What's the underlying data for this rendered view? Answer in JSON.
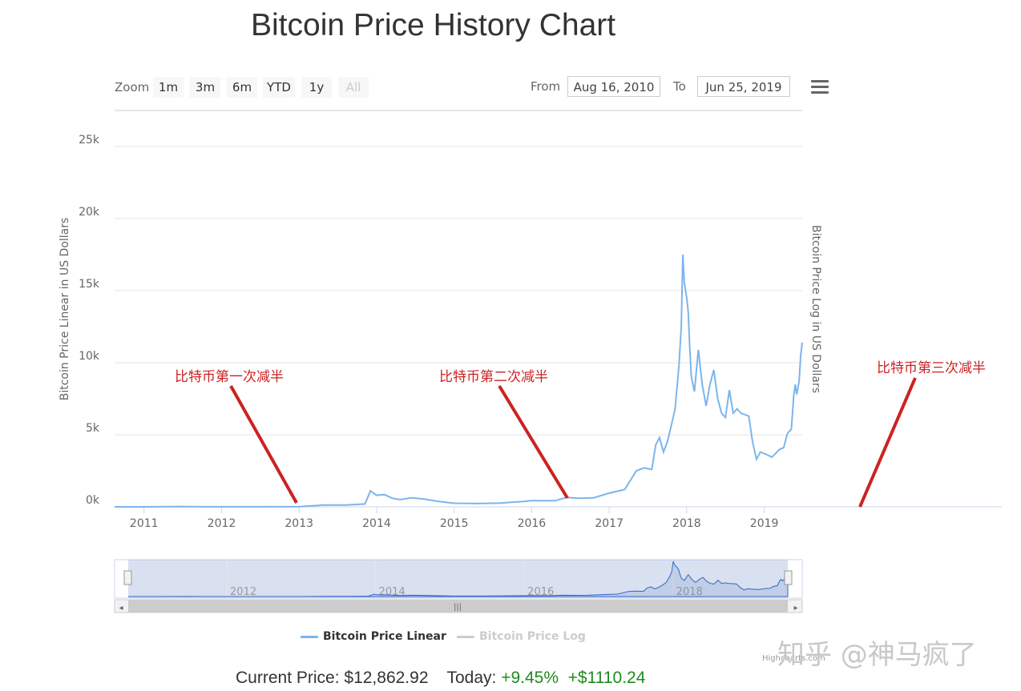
{
  "title": "Bitcoin Price History Chart",
  "toolbar": {
    "zoom_label": "Zoom",
    "zoom_buttons": [
      "1m",
      "3m",
      "6m",
      "YTD",
      "1y",
      "All"
    ],
    "from_label": "From",
    "from_value": "Aug 16, 2010",
    "to_label": "To",
    "to_value": "Jun 25, 2019"
  },
  "chart_data": {
    "type": "line",
    "title": "Bitcoin Price History Chart",
    "ylabel": "Bitcoin Price Linear in US Dollars",
    "y2label": "Bitcoin Price Log in US Dollars",
    "ylim": [
      0,
      27500
    ],
    "yticks": [
      0,
      5000,
      10000,
      15000,
      20000,
      25000
    ],
    "ytick_labels": [
      "0k",
      "5k",
      "10k",
      "15k",
      "20k",
      "25k"
    ],
    "xlim": [
      2010.62,
      2019.49
    ],
    "xticks": [
      2011,
      2012,
      2013,
      2014,
      2015,
      2016,
      2017,
      2018,
      2019
    ],
    "xtick_labels": [
      "2011",
      "2012",
      "2013",
      "2014",
      "2015",
      "2016",
      "2017",
      "2018",
      "2019"
    ],
    "navigator_labels": [
      "2012",
      "2014",
      "2016",
      "2018"
    ],
    "navigator_ticks": [
      2012,
      2014,
      2016,
      2018
    ],
    "series": [
      {
        "name": "Bitcoin Price Linear",
        "color": "#7cb5ec",
        "x": [
          2010.62,
          2011.0,
          2011.45,
          2011.6,
          2012.0,
          2012.5,
          2013.0,
          2013.25,
          2013.3,
          2013.6,
          2013.85,
          2013.92,
          2014.0,
          2014.1,
          2014.2,
          2014.3,
          2014.45,
          2014.6,
          2014.8,
          2015.0,
          2015.3,
          2015.6,
          2015.9,
          2016.0,
          2016.3,
          2016.45,
          2016.6,
          2016.8,
          2017.0,
          2017.2,
          2017.35,
          2017.45,
          2017.55,
          2017.6,
          2017.65,
          2017.7,
          2017.75,
          2017.8,
          2017.85,
          2017.9,
          2017.93,
          2017.95,
          2017.97,
          2018.0,
          2018.02,
          2018.04,
          2018.06,
          2018.1,
          2018.15,
          2018.2,
          2018.25,
          2018.3,
          2018.35,
          2018.4,
          2018.45,
          2018.5,
          2018.55,
          2018.6,
          2018.65,
          2018.7,
          2018.8,
          2018.85,
          2018.9,
          2018.95,
          2019.0,
          2019.1,
          2019.2,
          2019.25,
          2019.3,
          2019.35,
          2019.38,
          2019.4,
          2019.42,
          2019.45,
          2019.47,
          2019.49
        ],
        "values": [
          0,
          1,
          20,
          10,
          5,
          8,
          14,
          100,
          130,
          120,
          200,
          1100,
          800,
          850,
          600,
          500,
          620,
          550,
          380,
          250,
          230,
          260,
          380,
          430,
          420,
          650,
          600,
          630,
          950,
          1200,
          2500,
          2700,
          2600,
          4300,
          4800,
          3800,
          4500,
          5600,
          6800,
          9800,
          12500,
          17500,
          15500,
          14500,
          13500,
          11000,
          9000,
          8000,
          10900,
          8500,
          7000,
          8500,
          9500,
          7500,
          6500,
          6200,
          8100,
          6500,
          6800,
          6500,
          6300,
          4500,
          3300,
          3800,
          3700,
          3450,
          4000,
          4100,
          5100,
          5400,
          7700,
          8500,
          7800,
          8700,
          10500,
          11400
        ]
      },
      {
        "name": "Bitcoin Price Log",
        "color": "#cccccc"
      }
    ]
  },
  "annotations": [
    {
      "label": "比特币第一次减半"
    },
    {
      "label": "比特币第二次减半"
    },
    {
      "label": "比特币第三次减半"
    }
  ],
  "navigator": {
    "scroll_handle_icon": "grip-icon",
    "left_arrow_icon": "left-arrow-icon",
    "right_arrow_icon": "right-arrow-icon"
  },
  "footer": {
    "current_label": "Current Price:",
    "current_value": "$12,862.92",
    "today_label": "Today:",
    "today_pct": "+9.45%",
    "today_abs": "+$1110.24"
  },
  "credits": "Highcharts.com",
  "watermark": "知乎 @神马疯了"
}
